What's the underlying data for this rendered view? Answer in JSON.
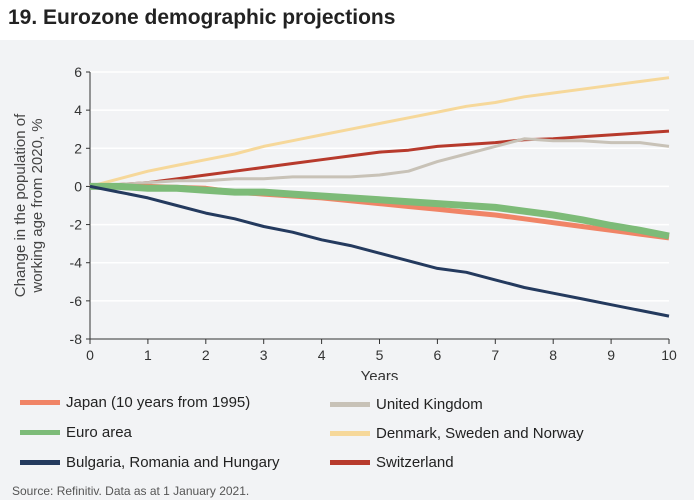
{
  "title": "19. Eurozone demographic projections",
  "source": "Source: Refinitiv. Data as at 1 January 2021.",
  "chart_data": {
    "type": "line",
    "xlabel": "Years",
    "ylabel": "Change in the population of working age from 2020, %",
    "xlim": [
      0,
      10
    ],
    "ylim": [
      -8,
      6
    ],
    "xticks": [
      "0",
      "1",
      "2",
      "3",
      "4",
      "5",
      "6",
      "7",
      "8",
      "9",
      "10"
    ],
    "yticks": [
      "6",
      "4",
      "2",
      "0",
      "-2",
      "-4",
      "-6",
      "-8"
    ],
    "grid": true,
    "legend_position": "bottom",
    "x": [
      0,
      0.5,
      1,
      1.5,
      2,
      2.5,
      3,
      3.5,
      4,
      4.5,
      5,
      5.5,
      6,
      6.5,
      7,
      7.5,
      8,
      8.5,
      9,
      9.5,
      10
    ],
    "series": [
      {
        "name": "Japan (10 years from 1995)",
        "color": "#f08466",
        "width": 5,
        "values": [
          0,
          0,
          0,
          -0.05,
          -0.1,
          -0.3,
          -0.4,
          -0.5,
          -0.6,
          -0.75,
          -0.9,
          -1.05,
          -1.2,
          -1.35,
          -1.5,
          -1.7,
          -1.9,
          -2.1,
          -2.3,
          -2.5,
          -2.7
        ]
      },
      {
        "name": "Euro area",
        "color": "#7dbb78",
        "width": 7,
        "values": [
          0,
          0,
          -0.1,
          -0.1,
          -0.2,
          -0.3,
          -0.3,
          -0.4,
          -0.5,
          -0.6,
          -0.7,
          -0.8,
          -0.9,
          -1.0,
          -1.1,
          -1.3,
          -1.5,
          -1.75,
          -2.05,
          -2.3,
          -2.6
        ]
      },
      {
        "name": "Bulgaria, Romania and Hungary",
        "color": "#243a5e",
        "width": 3,
        "values": [
          0,
          -0.3,
          -0.6,
          -1.0,
          -1.4,
          -1.7,
          -2.1,
          -2.4,
          -2.8,
          -3.1,
          -3.5,
          -3.9,
          -4.3,
          -4.5,
          -4.9,
          -5.3,
          -5.6,
          -5.9,
          -6.2,
          -6.5,
          -6.8
        ]
      },
      {
        "name": "United Kingdom",
        "color": "#c8c2b7",
        "width": 3,
        "values": [
          0,
          0.1,
          0.2,
          0.3,
          0.3,
          0.4,
          0.4,
          0.5,
          0.5,
          0.5,
          0.6,
          0.8,
          1.3,
          1.7,
          2.1,
          2.5,
          2.4,
          2.4,
          2.3,
          2.3,
          2.1
        ]
      },
      {
        "name": "Denmark, Sweden and Norway",
        "color": "#f6d89a",
        "width": 3,
        "values": [
          0,
          0.4,
          0.8,
          1.1,
          1.4,
          1.7,
          2.1,
          2.4,
          2.7,
          3.0,
          3.3,
          3.6,
          3.9,
          4.2,
          4.4,
          4.7,
          4.9,
          5.1,
          5.3,
          5.5,
          5.7
        ]
      },
      {
        "name": "Switzerland",
        "color": "#b73a2c",
        "width": 3,
        "values": [
          0,
          0.1,
          0.2,
          0.4,
          0.6,
          0.8,
          1.0,
          1.2,
          1.4,
          1.6,
          1.8,
          1.9,
          2.1,
          2.2,
          2.3,
          2.45,
          2.5,
          2.6,
          2.7,
          2.8,
          2.9
        ]
      }
    ]
  }
}
